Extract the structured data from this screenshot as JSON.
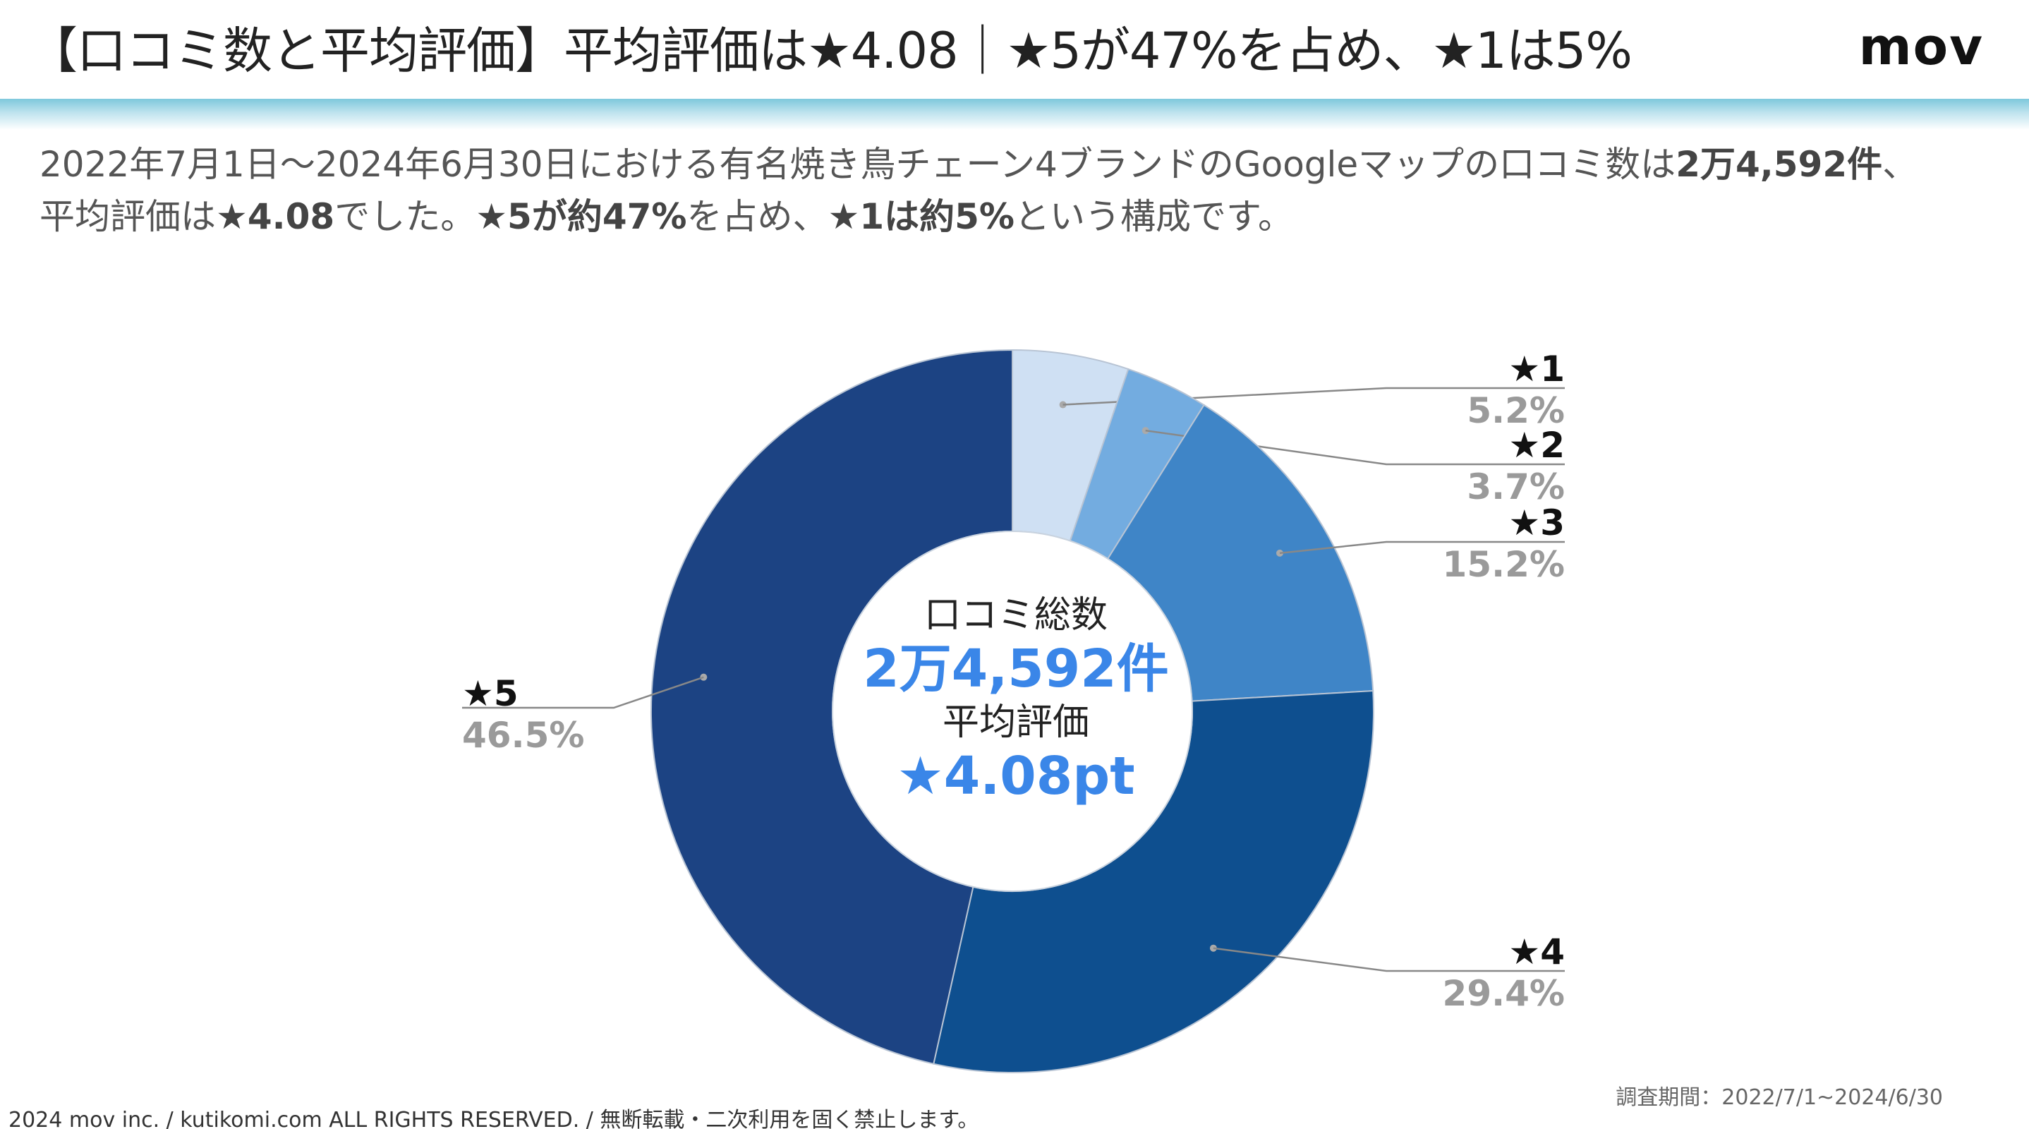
{
  "header": {
    "title": "【口コミ数と平均評価】平均評価は★4.08｜★5が47%を占め、★1は5%",
    "logo": "mov"
  },
  "summary": {
    "line1_a": "2022年7月1日〜2024年6月30日における有名焼き鳥チェーン4ブランドのGoogleマップの口コミ数は",
    "line1_b": "2万4,592件",
    "line1_c": "、",
    "line2_a": "平均評価は",
    "line2_b": "★4.08",
    "line2_c": "でした。",
    "line2_d": "★5が約47%",
    "line2_e": "を占め、",
    "line2_f": "★1は約5%",
    "line2_g": "という構成です。"
  },
  "center": {
    "total_label": "口コミ総数",
    "total_value": "2万4,592件",
    "avg_label": "平均評価",
    "avg_value": "★4.08pt"
  },
  "chart_data": {
    "type": "pie",
    "donut": true,
    "categories": [
      "★1",
      "★2",
      "★3",
      "★4",
      "★5"
    ],
    "values": [
      5.2,
      3.7,
      15.2,
      29.4,
      46.5
    ],
    "value_labels": [
      "5.2%",
      "3.7%",
      "15.2%",
      "29.4%",
      "46.5%"
    ],
    "colors": [
      "#cfe0f3",
      "#73ace0",
      "#3f85c7",
      "#0e4f8f",
      "#1c4383"
    ],
    "start_angle_deg": 0,
    "direction": "clockwise",
    "label_text_color": "#111111",
    "value_text_color": "#9a9a9a",
    "leader_line_color": "#888888"
  },
  "footer": {
    "copyright": "2024 mov inc. / kutikomi.com ALL RIGHTS RESERVED. / 無断転載・二次利用を固く禁止します。",
    "period": "調査期間：2022/7/1~2024/6/30"
  }
}
